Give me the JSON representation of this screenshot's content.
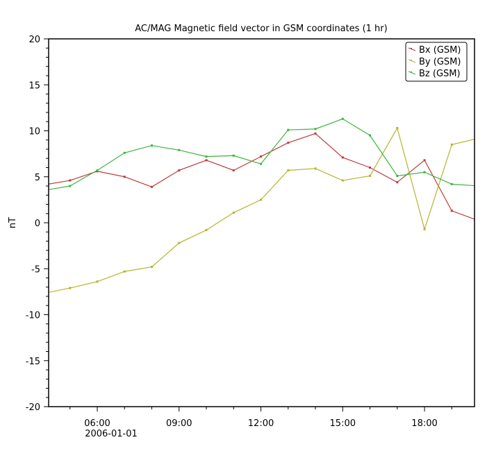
{
  "chart_data": {
    "type": "line",
    "title": "AC/MAG  Magnetic field vector in GSM coordinates (1 hr)",
    "ylabel": "nT",
    "xlabel": "",
    "date_label": "2006-01-01",
    "ylim": [
      -20,
      20
    ],
    "xlim": [
      "04:13",
      "19:50"
    ],
    "y_ticks": [
      20,
      15,
      10,
      5,
      0,
      -5,
      -10,
      -15,
      -20
    ],
    "x_ticks": [
      "06:00",
      "09:00",
      "12:00",
      "15:00",
      "18:00"
    ],
    "x": [
      "04:00",
      "05:00",
      "06:00",
      "07:00",
      "08:00",
      "09:00",
      "10:00",
      "11:00",
      "12:00",
      "13:00",
      "14:00",
      "15:00",
      "16:00",
      "17:00",
      "18:00",
      "19:00",
      "20:00"
    ],
    "series": [
      {
        "name": "Bx (GSM)",
        "color": "#c0393b",
        "values": [
          4.1,
          4.6,
          5.6,
          5.0,
          3.9,
          5.7,
          6.8,
          5.7,
          7.2,
          8.7,
          9.7,
          7.1,
          6.0,
          4.4,
          6.8,
          1.3,
          0.2
        ]
      },
      {
        "name": "By (GSM)",
        "color": "#b5b32b",
        "values": [
          -7.7,
          -7.1,
          -6.4,
          -5.3,
          -4.8,
          -2.2,
          -0.8,
          1.1,
          2.5,
          5.7,
          5.9,
          4.6,
          5.1,
          10.3,
          -0.7,
          8.5,
          9.2
        ]
      },
      {
        "name": "Bz (GSM)",
        "color": "#3cb53c",
        "values": [
          3.5,
          4.0,
          5.7,
          7.6,
          8.4,
          7.9,
          7.2,
          7.3,
          6.4,
          10.1,
          10.2,
          11.3,
          9.5,
          5.1,
          5.5,
          4.2,
          4.0
        ]
      }
    ],
    "legend_placement": "top-right",
    "grid": false
  }
}
